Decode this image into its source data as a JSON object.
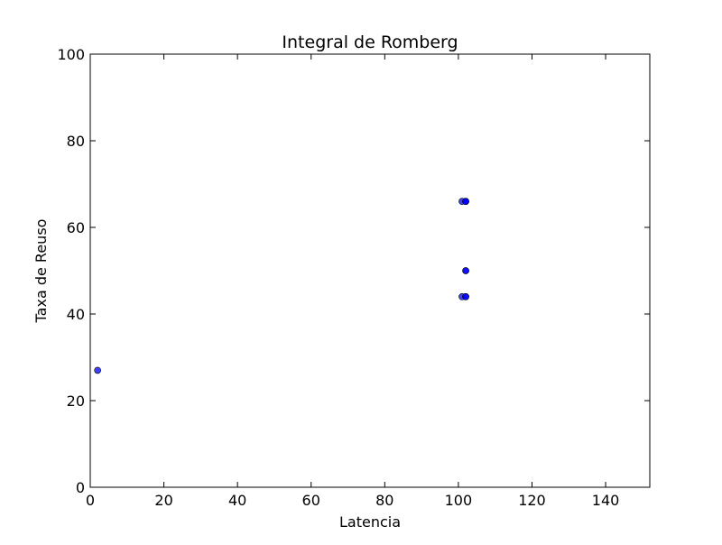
{
  "chart_data": {
    "type": "scatter",
    "title": "Integral de Romberg",
    "xlabel": "Latencia",
    "ylabel": "Taxa de Reuso",
    "xlim": [
      0,
      152
    ],
    "ylim": [
      0,
      100
    ],
    "xticks": [
      0,
      20,
      40,
      60,
      80,
      100,
      120,
      140
    ],
    "yticks": [
      0,
      20,
      40,
      60,
      80,
      100
    ],
    "grid": false,
    "marker_color": "#0000ff",
    "marker_edge_color": "#000000",
    "series": [
      {
        "x": [
          2,
          101,
          102,
          102,
          102,
          102,
          102,
          101,
          102,
          102
        ],
        "y": [
          27,
          66,
          66,
          66,
          66,
          50,
          50,
          44,
          44,
          44
        ]
      }
    ]
  }
}
